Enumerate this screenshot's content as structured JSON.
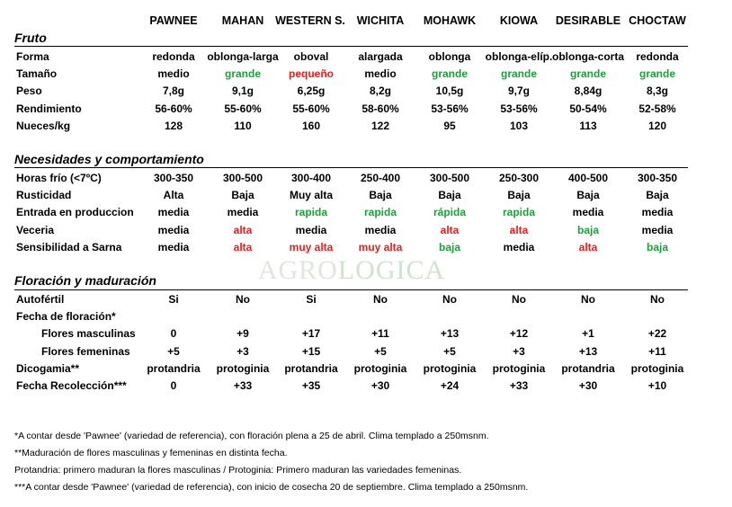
{
  "columns": [
    "PAWNEE",
    "MAHAN",
    "WESTERN S.",
    "WICHITA",
    "MOHAWK",
    "KIOWA",
    "DESIRABLE",
    "CHOCTAW"
  ],
  "colors": {
    "green": "#1aa13a",
    "red": "#e41e1e"
  },
  "sections": [
    {
      "title": "Fruto",
      "rows": [
        {
          "label": "Forma",
          "values": [
            "redonda",
            "oblonga-larga",
            "oboval",
            "alargada",
            "oblonga",
            "oblonga-elíp.",
            "oblonga-corta",
            "redonda"
          ],
          "colors": [
            "",
            "",
            "",
            "",
            "",
            "",
            "",
            ""
          ]
        },
        {
          "label": "Tamaño",
          "values": [
            "medio",
            "grande",
            "pequeño",
            "medio",
            "grande",
            "grande",
            "grande",
            "grande"
          ],
          "colors": [
            "",
            "green",
            "red",
            "",
            "green",
            "green",
            "green",
            "green"
          ]
        },
        {
          "label": "Peso",
          "values": [
            "7,8g",
            "9,1g",
            "6,25g",
            "8,2g",
            "10,5g",
            "9,7g",
            "8,84g",
            "8,3g"
          ],
          "colors": [
            "",
            "",
            "",
            "",
            "",
            "",
            "",
            ""
          ]
        },
        {
          "label": "Rendimiento",
          "values": [
            "56-60%",
            "55-60%",
            "55-60%",
            "58-60%",
            "53-56%",
            "53-56%",
            "50-54%",
            "52-58%"
          ],
          "colors": [
            "",
            "",
            "",
            "",
            "",
            "",
            "",
            ""
          ]
        },
        {
          "label": "Nueces/kg",
          "values": [
            "128",
            "110",
            "160",
            "122",
            "95",
            "103",
            "113",
            "120"
          ],
          "colors": [
            "",
            "",
            "",
            "",
            "",
            "",
            "",
            ""
          ]
        }
      ]
    },
    {
      "title": "Necesidades y comportamiento",
      "rows": [
        {
          "label": "Horas frío (<7ºC)",
          "values": [
            "300-350",
            "300-500",
            "300-400",
            "250-400",
            "300-500",
            "250-300",
            "400-500",
            "300-350"
          ],
          "colors": [
            "",
            "",
            "",
            "",
            "",
            "",
            "",
            ""
          ]
        },
        {
          "label": "Rusticidad",
          "values": [
            "Alta",
            "Baja",
            "Muy alta",
            "Baja",
            "Baja",
            "Baja",
            "Baja",
            "Baja"
          ],
          "colors": [
            "",
            "",
            "",
            "",
            "",
            "",
            "",
            ""
          ]
        },
        {
          "label": "Entrada en produccion",
          "values": [
            "media",
            "media",
            "rapida",
            "rapida",
            "rápida",
            "rapida",
            "media",
            "media"
          ],
          "colors": [
            "",
            "",
            "green",
            "green",
            "green",
            "green",
            "",
            ""
          ]
        },
        {
          "label": "Veceria",
          "values": [
            "media",
            "alta",
            "media",
            "media",
            "alta",
            "alta",
            "baja",
            "media"
          ],
          "colors": [
            "",
            "red",
            "",
            "",
            "red",
            "red",
            "green",
            ""
          ]
        },
        {
          "label": "Sensibilidad a Sarna",
          "values": [
            "media",
            "alta",
            "muy alta",
            "muy alta",
            "baja",
            "media",
            "alta",
            "baja"
          ],
          "colors": [
            "",
            "red",
            "red",
            "red",
            "green",
            "",
            "red",
            "green"
          ]
        }
      ]
    },
    {
      "title": "Floración y maduración",
      "rows": [
        {
          "label": "Autofértil",
          "values": [
            "Si",
            "No",
            "Si",
            "No",
            "No",
            "No",
            "No",
            "No"
          ],
          "colors": [
            "",
            "",
            "",
            "",
            "",
            "",
            "",
            ""
          ]
        },
        {
          "label": "Fecha de floración*",
          "values": [
            "",
            "",
            "",
            "",
            "",
            "",
            "",
            ""
          ],
          "colors": [
            "",
            "",
            "",
            "",
            "",
            "",
            "",
            ""
          ]
        },
        {
          "label": "Flores masculinas",
          "sub": true,
          "values": [
            "0",
            "+9",
            "+17",
            "+11",
            "+13",
            "+12",
            "+1",
            "+22"
          ],
          "colors": [
            "",
            "",
            "",
            "",
            "",
            "",
            "",
            ""
          ]
        },
        {
          "label": "Flores femeninas",
          "sub": true,
          "values": [
            "+5",
            "+3",
            "+15",
            "+5",
            "+5",
            "+3",
            "+13",
            "+11"
          ],
          "colors": [
            "",
            "",
            "",
            "",
            "",
            "",
            "",
            ""
          ]
        },
        {
          "label": "Dicogamia**",
          "values": [
            "protandria",
            "protoginia",
            "protandria",
            "protoginia",
            "protoginia",
            "protoginia",
            "protandria",
            "protoginia"
          ],
          "colors": [
            "",
            "",
            "",
            "",
            "",
            "",
            "",
            ""
          ]
        },
        {
          "label": "Fecha Recolección***",
          "values": [
            "0",
            "+33",
            "+35",
            "+30",
            "+24",
            "+33",
            "+30",
            "+10"
          ],
          "colors": [
            "",
            "",
            "",
            "",
            "",
            "",
            "",
            ""
          ]
        }
      ]
    }
  ],
  "watermark": {
    "part1": "AGRO",
    "part2": "LOGICA"
  },
  "notes": [
    "*A contar desde 'Pawnee' (variedad de referencia), con floración plena a 25 de abril. Clima templado a 250msnm.",
    "**Maduración de flores masculinas y femeninas en distinta fecha.",
    "Protandria: primero maduran la flores masculinas / Protoginia: Primero maduran las variedades femeninas.",
    "***A contar desde 'Pawnee' (variedad de referencia), con inicio de cosecha 20 de septiembre. Clima templado a 250msnm."
  ]
}
